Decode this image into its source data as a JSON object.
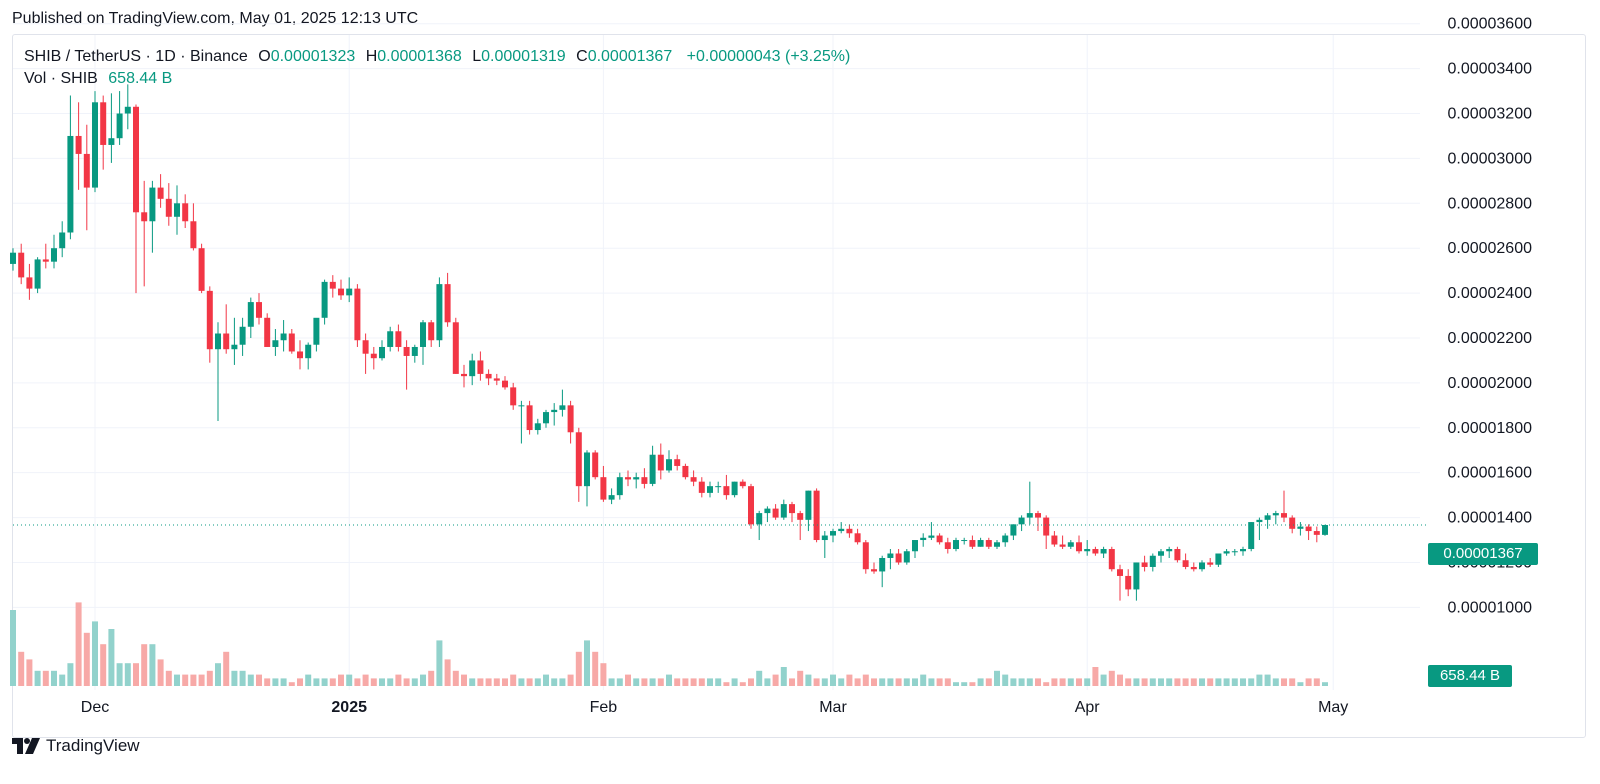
{
  "header": {
    "published": "Published on TradingView.com, May 01, 2025 12:13 UTC"
  },
  "legend": {
    "symbol": "SHIB / TetherUS · 1D · Binance",
    "open_label": "O",
    "open": "0.00001323",
    "high_label": "H",
    "high": "0.00001368",
    "low_label": "L",
    "low": "0.00001319",
    "close_label": "C",
    "close": "0.00001367",
    "change": "+0.00000043 (+3.25%)",
    "vol_label": "Vol · SHIB",
    "vol_value": "658.44 B"
  },
  "price_tag": "0.00001367",
  "vol_tag": "658.44 B",
  "footer": {
    "brand": "TradingView"
  },
  "colors": {
    "up": "#089981",
    "down": "#f23645",
    "up_vol": "#92d2cc",
    "down_vol": "#f7a9a7",
    "grid": "#f0f3fa",
    "axis_text": "#131722"
  },
  "chart_data": {
    "type": "candlestick",
    "ylim": [
      8.6e-06,
      3.65e-05
    ],
    "y_ticks": [
      "0.00001000",
      "0.00001200",
      "0.00001400",
      "0.00001600",
      "0.00001800",
      "0.00002000",
      "0.00002200",
      "0.00002400",
      "0.00002600",
      "0.00002800",
      "0.00003000",
      "0.00003200",
      "0.00003400",
      "0.00003600"
    ],
    "x_ticks": [
      {
        "label": "Dec",
        "index": 10,
        "bold": false
      },
      {
        "label": "2025",
        "index": 41,
        "bold": true
      },
      {
        "label": "Feb",
        "index": 72,
        "bold": false
      },
      {
        "label": "Mar",
        "index": 100,
        "bold": false
      },
      {
        "label": "Apr",
        "index": 131,
        "bold": false
      },
      {
        "label": "May",
        "index": 161,
        "bold": false
      }
    ],
    "last_price": 1.367e-05,
    "candles": [
      [
        2.53e-05,
        2.6e-05,
        2.5e-05,
        2.58e-05
      ],
      [
        2.58e-05,
        2.62e-05,
        2.44e-05,
        2.47e-05
      ],
      [
        2.47e-05,
        2.53e-05,
        2.37e-05,
        2.42e-05
      ],
      [
        2.42e-05,
        2.56e-05,
        2.4e-05,
        2.55e-05
      ],
      [
        2.55e-05,
        2.62e-05,
        2.51e-05,
        2.54e-05
      ],
      [
        2.54e-05,
        2.66e-05,
        2.51e-05,
        2.6e-05
      ],
      [
        2.6e-05,
        2.72e-05,
        2.56e-05,
        2.67e-05
      ],
      [
        2.67e-05,
        3.28e-05,
        2.64e-05,
        3.1e-05
      ],
      [
        3.1e-05,
        3.25e-05,
        2.86e-05,
        3.02e-05
      ],
      [
        3.02e-05,
        3.15e-05,
        2.68e-05,
        2.87e-05
      ],
      [
        2.87e-05,
        3.3e-05,
        2.85e-05,
        3.25e-05
      ],
      [
        3.25e-05,
        3.28e-05,
        2.95e-05,
        3.06e-05
      ],
      [
        3.06e-05,
        3.29e-05,
        2.98e-05,
        3.09e-05
      ],
      [
        3.09e-05,
        3.3e-05,
        3.06e-05,
        3.2e-05
      ],
      [
        3.2e-05,
        3.33e-05,
        3.13e-05,
        3.23e-05
      ],
      [
        3.23e-05,
        3.24e-05,
        2.4e-05,
        2.76e-05
      ],
      [
        2.76e-05,
        2.9e-05,
        2.43e-05,
        2.72e-05
      ],
      [
        2.72e-05,
        2.9e-05,
        2.58e-05,
        2.87e-05
      ],
      [
        2.87e-05,
        2.93e-05,
        2.78e-05,
        2.82e-05
      ],
      [
        2.82e-05,
        2.89e-05,
        2.7e-05,
        2.74e-05
      ],
      [
        2.74e-05,
        2.88e-05,
        2.66e-05,
        2.8e-05
      ],
      [
        2.8e-05,
        2.84e-05,
        2.69e-05,
        2.72e-05
      ],
      [
        2.72e-05,
        2.8e-05,
        2.59e-05,
        2.6e-05
      ],
      [
        2.6e-05,
        2.62e-05,
        2.4e-05,
        2.41e-05
      ],
      [
        2.41e-05,
        2.43e-05,
        2.09e-05,
        2.15e-05
      ],
      [
        2.15e-05,
        2.27e-05,
        1.83e-05,
        2.22e-05
      ],
      [
        2.22e-05,
        2.35e-05,
        2.13e-05,
        2.15e-05
      ],
      [
        2.15e-05,
        2.29e-05,
        2.08e-05,
        2.17e-05
      ],
      [
        2.17e-05,
        2.29e-05,
        2.12e-05,
        2.25e-05
      ],
      [
        2.25e-05,
        2.38e-05,
        2.2e-05,
        2.36e-05
      ],
      [
        2.36e-05,
        2.4e-05,
        2.26e-05,
        2.29e-05
      ],
      [
        2.29e-05,
        2.31e-05,
        2.16e-05,
        2.16e-05
      ],
      [
        2.16e-05,
        2.24e-05,
        2.12e-05,
        2.19e-05
      ],
      [
        2.19e-05,
        2.28e-05,
        2.14e-05,
        2.22e-05
      ],
      [
        2.22e-05,
        2.24e-05,
        2.13e-05,
        2.14e-05
      ],
      [
        2.14e-05,
        2.19e-05,
        2.06e-05,
        2.11e-05
      ],
      [
        2.11e-05,
        2.18e-05,
        2.06e-05,
        2.17e-05
      ],
      [
        2.17e-05,
        2.28e-05,
        2.14e-05,
        2.29e-05
      ],
      [
        2.29e-05,
        2.46e-05,
        2.26e-05,
        2.45e-05
      ],
      [
        2.45e-05,
        2.48e-05,
        2.38e-05,
        2.42e-05
      ],
      [
        2.42e-05,
        2.46e-05,
        2.37e-05,
        2.39e-05
      ],
      [
        2.39e-05,
        2.47e-05,
        2.36e-05,
        2.42e-05
      ],
      [
        2.42e-05,
        2.44e-05,
        2.16e-05,
        2.19e-05
      ],
      [
        2.19e-05,
        2.22e-05,
        2.04e-05,
        2.13e-05
      ],
      [
        2.13e-05,
        2.16e-05,
        2.06e-05,
        2.11e-05
      ],
      [
        2.11e-05,
        2.19e-05,
        2.1e-05,
        2.16e-05
      ],
      [
        2.16e-05,
        2.25e-05,
        2.14e-05,
        2.23e-05
      ],
      [
        2.23e-05,
        2.26e-05,
        2.14e-05,
        2.16e-05
      ],
      [
        2.16e-05,
        2.19e-05,
        1.97e-05,
        2.12e-05
      ],
      [
        2.12e-05,
        2.17e-05,
        2.09e-05,
        2.16e-05
      ],
      [
        2.16e-05,
        2.28e-05,
        2.08e-05,
        2.27e-05
      ],
      [
        2.27e-05,
        2.28e-05,
        2.16e-05,
        2.19e-05
      ],
      [
        2.19e-05,
        2.47e-05,
        2.16e-05,
        2.44e-05
      ],
      [
        2.44e-05,
        2.49e-05,
        2.25e-05,
        2.27e-05
      ],
      [
        2.27e-05,
        2.29e-05,
        2.04e-05,
        2.04e-05
      ],
      [
        2.04e-05,
        2.08e-05,
        1.98e-05,
        2.03e-05
      ],
      [
        2.03e-05,
        2.13e-05,
        1.99e-05,
        2.1e-05
      ],
      [
        2.1e-05,
        2.14e-05,
        2.01e-05,
        2.04e-05
      ],
      [
        2.04e-05,
        2.06e-05,
        1.99e-05,
        2.02e-05
      ],
      [
        2.02e-05,
        2.04e-05,
        1.99e-05,
        2.01e-05
      ],
      [
        2.01e-05,
        2.03e-05,
        1.97e-05,
        1.98e-05
      ],
      [
        1.98e-05,
        2e-05,
        1.88e-05,
        1.9e-05
      ],
      [
        1.9e-05,
        1.92e-05,
        1.73e-05,
        1.9e-05
      ],
      [
        1.9e-05,
        1.92e-05,
        1.77e-05,
        1.79e-05
      ],
      [
        1.79e-05,
        1.84e-05,
        1.77e-05,
        1.82e-05
      ],
      [
        1.82e-05,
        1.88e-05,
        1.8e-05,
        1.87e-05
      ],
      [
        1.87e-05,
        1.91e-05,
        1.81e-05,
        1.88e-05
      ],
      [
        1.88e-05,
        1.97e-05,
        1.85e-05,
        1.9e-05
      ],
      [
        1.9e-05,
        1.92e-05,
        1.73e-05,
        1.78e-05
      ],
      [
        1.78e-05,
        1.8e-05,
        1.47e-05,
        1.54e-05
      ],
      [
        1.54e-05,
        1.7e-05,
        1.45e-05,
        1.69e-05
      ],
      [
        1.69e-05,
        1.7e-05,
        1.57e-05,
        1.58e-05
      ],
      [
        1.58e-05,
        1.63e-05,
        1.47e-05,
        1.48e-05
      ],
      [
        1.48e-05,
        1.53e-05,
        1.46e-05,
        1.5e-05
      ],
      [
        1.5e-05,
        1.6e-05,
        1.48e-05,
        1.58e-05
      ],
      [
        1.58e-05,
        1.61e-05,
        1.54e-05,
        1.57e-05
      ],
      [
        1.57e-05,
        1.6e-05,
        1.53e-05,
        1.58e-05
      ],
      [
        1.58e-05,
        1.62e-05,
        1.53e-05,
        1.55e-05
      ],
      [
        1.55e-05,
        1.72e-05,
        1.54e-05,
        1.68e-05
      ],
      [
        1.68e-05,
        1.73e-05,
        1.57e-05,
        1.61e-05
      ],
      [
        1.61e-05,
        1.7e-05,
        1.6e-05,
        1.66e-05
      ],
      [
        1.66e-05,
        1.68e-05,
        1.61e-05,
        1.63e-05
      ],
      [
        1.63e-05,
        1.64e-05,
        1.57e-05,
        1.58e-05
      ],
      [
        1.58e-05,
        1.61e-05,
        1.54e-05,
        1.56e-05
      ],
      [
        1.56e-05,
        1.58e-05,
        1.49e-05,
        1.51e-05
      ],
      [
        1.51e-05,
        1.56e-05,
        1.49e-05,
        1.54e-05
      ],
      [
        1.54e-05,
        1.56e-05,
        1.51e-05,
        1.54e-05
      ],
      [
        1.54e-05,
        1.59e-05,
        1.48e-05,
        1.5e-05
      ],
      [
        1.5e-05,
        1.56e-05,
        1.49e-05,
        1.56e-05
      ],
      [
        1.56e-05,
        1.57e-05,
        1.53e-05,
        1.54e-05
      ],
      [
        1.54e-05,
        1.55e-05,
        1.35e-05,
        1.37e-05
      ],
      [
        1.37e-05,
        1.43e-05,
        1.3e-05,
        1.42e-05
      ],
      [
        1.42e-05,
        1.45e-05,
        1.38e-05,
        1.44e-05
      ],
      [
        1.44e-05,
        1.46e-05,
        1.39e-05,
        1.4e-05
      ],
      [
        1.4e-05,
        1.48e-05,
        1.39e-05,
        1.46e-05
      ],
      [
        1.46e-05,
        1.47e-05,
        1.38e-05,
        1.42e-05
      ],
      [
        1.42e-05,
        1.43e-05,
        1.3e-05,
        1.39e-05
      ],
      [
        1.39e-05,
        1.52e-05,
        1.34e-05,
        1.52e-05
      ],
      [
        1.52e-05,
        1.53e-05,
        1.29e-05,
        1.3e-05
      ],
      [
        1.3e-05,
        1.34e-05,
        1.22e-05,
        1.32e-05
      ],
      [
        1.32e-05,
        1.35e-05,
        1.29e-05,
        1.34e-05
      ],
      [
        1.34e-05,
        1.38e-05,
        1.33e-05,
        1.35e-05
      ],
      [
        1.35e-05,
        1.37e-05,
        1.31e-05,
        1.33e-05
      ],
      [
        1.33e-05,
        1.35e-05,
        1.28e-05,
        1.29e-05
      ],
      [
        1.29e-05,
        1.3e-05,
        1.15e-05,
        1.17e-05
      ],
      [
        1.17e-05,
        1.2e-05,
        1.15e-05,
        1.16e-05
      ],
      [
        1.16e-05,
        1.23e-05,
        1.09e-05,
        1.22e-05
      ],
      [
        1.22e-05,
        1.26e-05,
        1.17e-05,
        1.24e-05
      ],
      [
        1.24e-05,
        1.26e-05,
        1.19e-05,
        1.2e-05
      ],
      [
        1.2e-05,
        1.26e-05,
        1.19e-05,
        1.25e-05
      ],
      [
        1.25e-05,
        1.3e-05,
        1.22e-05,
        1.3e-05
      ],
      [
        1.3e-05,
        1.33e-05,
        1.27e-05,
        1.31e-05
      ],
      [
        1.31e-05,
        1.38e-05,
        1.3e-05,
        1.32e-05
      ],
      [
        1.32e-05,
        1.33e-05,
        1.28e-05,
        1.29e-05
      ],
      [
        1.29e-05,
        1.31e-05,
        1.24e-05,
        1.26e-05
      ],
      [
        1.26e-05,
        1.31e-05,
        1.25e-05,
        1.3e-05
      ],
      [
        1.3e-05,
        1.31e-05,
        1.28e-05,
        1.3e-05
      ],
      [
        1.3e-05,
        1.32e-05,
        1.26e-05,
        1.27e-05
      ],
      [
        1.27e-05,
        1.31e-05,
        1.27e-05,
        1.3e-05
      ],
      [
        1.3e-05,
        1.31e-05,
        1.26e-05,
        1.27e-05
      ],
      [
        1.27e-05,
        1.3e-05,
        1.26e-05,
        1.29e-05
      ],
      [
        1.29e-05,
        1.33e-05,
        1.27e-05,
        1.32e-05
      ],
      [
        1.32e-05,
        1.37e-05,
        1.3e-05,
        1.37e-05
      ],
      [
        1.37e-05,
        1.41e-05,
        1.34e-05,
        1.4e-05
      ],
      [
        1.4e-05,
        1.56e-05,
        1.37e-05,
        1.42e-05
      ],
      [
        1.42e-05,
        1.43e-05,
        1.34e-05,
        1.4e-05
      ],
      [
        1.4e-05,
        1.41e-05,
        1.26e-05,
        1.32e-05
      ],
      [
        1.32e-05,
        1.34e-05,
        1.27e-05,
        1.28e-05
      ],
      [
        1.28e-05,
        1.32e-05,
        1.26e-05,
        1.27e-05
      ],
      [
        1.27e-05,
        1.3e-05,
        1.26e-05,
        1.29e-05
      ],
      [
        1.29e-05,
        1.32e-05,
        1.24e-05,
        1.25e-05
      ],
      [
        1.25e-05,
        1.3e-05,
        1.23e-05,
        1.26e-05
      ],
      [
        1.26e-05,
        1.27e-05,
        1.23e-05,
        1.24e-05
      ],
      [
        1.24e-05,
        1.27e-05,
        1.22e-05,
        1.26e-05
      ],
      [
        1.26e-05,
        1.27e-05,
        1.16e-05,
        1.17e-05
      ],
      [
        1.17e-05,
        1.19e-05,
        1.03e-05,
        1.14e-05
      ],
      [
        1.14e-05,
        1.17e-05,
        1.05e-05,
        1.08e-05
      ],
      [
        1.08e-05,
        1.2e-05,
        1.03e-05,
        1.2e-05
      ],
      [
        1.2e-05,
        1.23e-05,
        1.16e-05,
        1.18e-05
      ],
      [
        1.18e-05,
        1.24e-05,
        1.16e-05,
        1.23e-05
      ],
      [
        1.23e-05,
        1.26e-05,
        1.2e-05,
        1.25e-05
      ],
      [
        1.25e-05,
        1.27e-05,
        1.22e-05,
        1.26e-05
      ],
      [
        1.26e-05,
        1.27e-05,
        1.2e-05,
        1.21e-05
      ],
      [
        1.21e-05,
        1.24e-05,
        1.17e-05,
        1.18e-05
      ],
      [
        1.18e-05,
        1.2e-05,
        1.16e-05,
        1.17e-05
      ],
      [
        1.17e-05,
        1.21e-05,
        1.16e-05,
        1.2e-05
      ],
      [
        1.2e-05,
        1.22e-05,
        1.18e-05,
        1.19e-05
      ],
      [
        1.19e-05,
        1.24e-05,
        1.18e-05,
        1.24e-05
      ],
      [
        1.24e-05,
        1.26e-05,
        1.23e-05,
        1.25e-05
      ],
      [
        1.25e-05,
        1.26e-05,
        1.23e-05,
        1.25e-05
      ],
      [
        1.25e-05,
        1.27e-05,
        1.23e-05,
        1.26e-05
      ],
      [
        1.26e-05,
        1.38e-05,
        1.25e-05,
        1.38e-05
      ],
      [
        1.38e-05,
        1.4e-05,
        1.3e-05,
        1.39e-05
      ],
      [
        1.39e-05,
        1.42e-05,
        1.35e-05,
        1.41e-05
      ],
      [
        1.41e-05,
        1.43e-05,
        1.37e-05,
        1.42e-05
      ],
      [
        1.42e-05,
        1.52e-05,
        1.38e-05,
        1.4e-05
      ],
      [
        1.4e-05,
        1.41e-05,
        1.33e-05,
        1.35e-05
      ],
      [
        1.35e-05,
        1.38e-05,
        1.32e-05,
        1.36e-05
      ],
      [
        1.36e-05,
        1.37e-05,
        1.3e-05,
        1.34e-05
      ],
      [
        1.34e-05,
        1.36e-05,
        1.29e-05,
        1.323e-05
      ],
      [
        1.323e-05,
        1.368e-05,
        1.319e-05,
        1.367e-05
      ]
    ],
    "volume": [
      20,
      9,
      7,
      4,
      4,
      4,
      3,
      6,
      22,
      14,
      17,
      11,
      15,
      6,
      6,
      6,
      11,
      11,
      7,
      4,
      3,
      3,
      3,
      3,
      4,
      6,
      9,
      4,
      4,
      3,
      3,
      2,
      2,
      2,
      1,
      2,
      3,
      2,
      2,
      2,
      3,
      3,
      2,
      3,
      2,
      2,
      2,
      3,
      2,
      2,
      3,
      4,
      12,
      7,
      4,
      3,
      2,
      2,
      2,
      2,
      2,
      3,
      2,
      2,
      2,
      3,
      2,
      2,
      3,
      9,
      12,
      9,
      6,
      2,
      2,
      3,
      2,
      2,
      2,
      2,
      3,
      2,
      2,
      2,
      2,
      2,
      2,
      1,
      2,
      1,
      2,
      4,
      2,
      3,
      5,
      2,
      4,
      3,
      2,
      2,
      3,
      2,
      3,
      2,
      3,
      2,
      2,
      2,
      2,
      2,
      2,
      3,
      2,
      2,
      2,
      1,
      1,
      1,
      2,
      2,
      4,
      3,
      2,
      2,
      2,
      2,
      1,
      2,
      2,
      2,
      2,
      2,
      5,
      3,
      4,
      3,
      2,
      2,
      2,
      2,
      2,
      2,
      2,
      2,
      2,
      2,
      2,
      2,
      2,
      2,
      2,
      2,
      3,
      3,
      2,
      2,
      2,
      1,
      2,
      2,
      1,
      1
    ]
  }
}
